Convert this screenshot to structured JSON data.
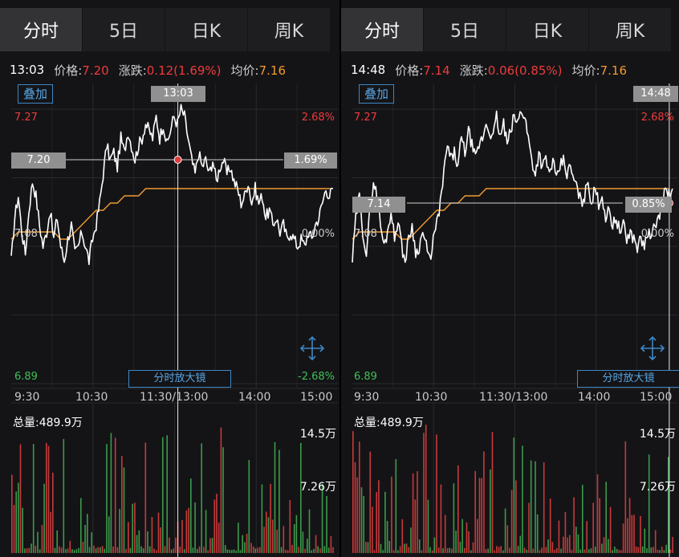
{
  "tabs": [
    "分时",
    "5日",
    "日K",
    "周K"
  ],
  "panels": [
    {
      "time": "13:03",
      "price_label": "价格:",
      "price": "7.20",
      "change_label": "涨跌:",
      "change": "0.12(1.69%)",
      "avg_label": "均价:",
      "avg": "7.16",
      "overlay_button": "叠加",
      "crosshair_time": "13:03",
      "crosshair_price": "7.20",
      "crosshair_pct": "1.69%",
      "y_high": "7.27",
      "y_mid": "7.08",
      "y_low": "6.89",
      "pct_high": "2.68%",
      "pct_mid": "0.00%",
      "pct_low": "-2.68%",
      "zoom_button": "分时放大镜",
      "time_axis": [
        "9:30",
        "10:30",
        "11:30/13:00",
        "14:00",
        "15:00"
      ],
      "volume_total": "总量:489.9万",
      "volume_max": "14.5万",
      "volume_half": "7.26万"
    },
    {
      "time": "14:48",
      "price_label": "价格:",
      "price": "7.14",
      "change_label": "涨跌:",
      "change": "0.06(0.85%)",
      "avg_label": "均价:",
      "avg": "7.16",
      "overlay_button": "叠加",
      "crosshair_time": "14:48",
      "crosshair_price": "7.14",
      "crosshair_pct": "0.85%",
      "y_high": "7.27",
      "y_mid": "7.08",
      "y_low": "6.89",
      "pct_high": "2.68%",
      "pct_mid": "0.00%",
      "pct_low": "-2.68%",
      "zoom_button": "分时放大镜",
      "time_axis": [
        "9:30",
        "10:30",
        "11:30/13:00",
        "14:00",
        "15:00"
      ],
      "volume_total": "总量:489.9万",
      "volume_max": "14.5万",
      "volume_half": "7.26万"
    }
  ],
  "chart_data": {
    "type": "line",
    "y_range": [
      6.89,
      7.27
    ],
    "prev_close": 7.08,
    "x_range_minutes": [
      0,
      240
    ],
    "series": [
      {
        "values_price": [
          7.06,
          7.12,
          7.15,
          7.1,
          7.07,
          7.13,
          7.17,
          7.15,
          7.11,
          7.08,
          7.1,
          7.13,
          7.09,
          7.12,
          7.08,
          7.06,
          7.09,
          7.11,
          7.07,
          7.08,
          7.1,
          7.08,
          7.06,
          7.09,
          7.11,
          7.14,
          7.18,
          7.22,
          7.2,
          7.21,
          7.19,
          7.23,
          7.21,
          7.24,
          7.22,
          7.2,
          7.22,
          7.23,
          7.25,
          7.24,
          7.23,
          7.26,
          7.23,
          7.25,
          7.22,
          7.24,
          7.26,
          7.25,
          7.27,
          7.26,
          7.23,
          7.2,
          7.18,
          7.21,
          7.19,
          7.2,
          7.18,
          7.2,
          7.17,
          7.19,
          7.2,
          7.18,
          7.19,
          7.17,
          7.16,
          7.14,
          7.15,
          7.17,
          7.14,
          7.16,
          7.14,
          7.15,
          7.12,
          7.13,
          7.11,
          7.12,
          7.1,
          7.11,
          7.09,
          7.1,
          7.09,
          7.08,
          7.09,
          7.08,
          7.1,
          7.09,
          7.11,
          7.12,
          7.14,
          7.16,
          7.15,
          7.16
        ]
      },
      {
        "values_avg": [
          7.09,
          7.1,
          7.1,
          7.1,
          7.1,
          7.1,
          7.1,
          7.09,
          7.09,
          7.1,
          7.11,
          7.12,
          7.13,
          7.13,
          7.14,
          7.14,
          7.15,
          7.15,
          7.15,
          7.16,
          7.16,
          7.16,
          7.16,
          7.16,
          7.16,
          7.16,
          7.16,
          7.16,
          7.16,
          7.16,
          7.16,
          7.16,
          7.16,
          7.16,
          7.16,
          7.16,
          7.16,
          7.16,
          7.16,
          7.16,
          7.16,
          7.16,
          7.16,
          7.16,
          7.16,
          7.16
        ]
      }
    ],
    "volume_max": 14.5,
    "volume_unit": "万"
  }
}
